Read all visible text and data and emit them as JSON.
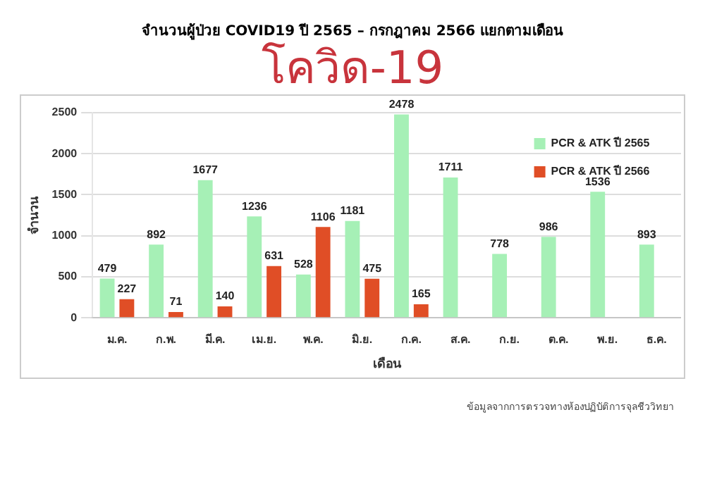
{
  "chart_data": {
    "type": "bar",
    "title": "จำนวนผู้ป่วย COVID19 ปี 2565 – กรกฎาคม 2566 แยกตามเดือน",
    "subtitle": "โควิด-19",
    "xlabel": "เดือน",
    "ylabel": "จำนวน",
    "categories": [
      "ม.ค.",
      "ก.พ.",
      "มี.ค.",
      "เม.ย.",
      "พ.ค.",
      "มิ.ย.",
      "ก.ค.",
      "ส.ค.",
      "ก.ย.",
      "ต.ค.",
      "พ.ย.",
      "ธ.ค."
    ],
    "series": [
      {
        "name": "PCR & ATK ปี 2565",
        "color": "#a6f0b6",
        "values": [
          479,
          892,
          1677,
          1236,
          528,
          1181,
          2478,
          1711,
          778,
          986,
          1536,
          893
        ]
      },
      {
        "name": "PCR & ATK ปี 2566",
        "color": "#e04e26",
        "values": [
          227,
          71,
          140,
          631,
          1106,
          475,
          165,
          null,
          null,
          null,
          null,
          null
        ]
      }
    ],
    "ylim": [
      0,
      2500
    ],
    "yticks": [
      0,
      500,
      1000,
      1500,
      2000,
      2500
    ],
    "grid": "y",
    "legend": "top right",
    "data_labels": true,
    "annotations": [
      "ข้อมูลจากการตรวจทางห้องปฏิบัติการจุลชีววิทยา"
    ]
  }
}
